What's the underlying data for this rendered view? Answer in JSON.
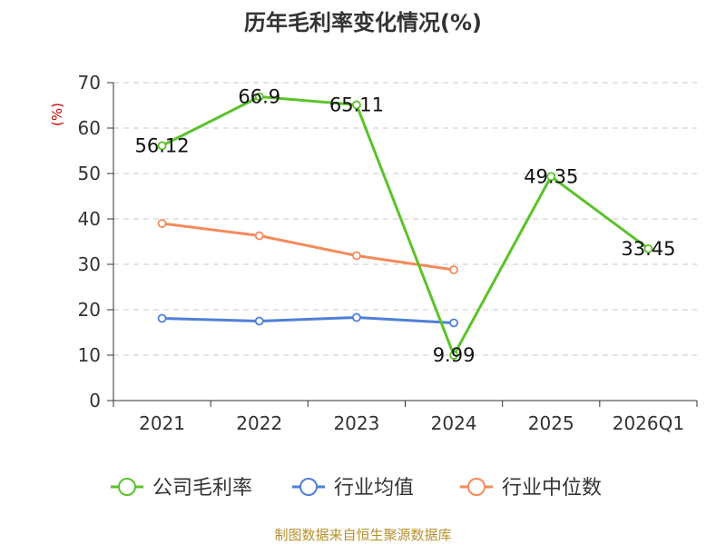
{
  "chart_data": {
    "type": "line",
    "title": "历年毛利率变化情况(%)",
    "ylabel": "(%)",
    "xlabel": "",
    "categories": [
      "2021",
      "2022",
      "2023",
      "2024",
      "2025",
      "2026Q1"
    ],
    "ylim": [
      0,
      70
    ],
    "yticks": [
      0,
      10,
      20,
      30,
      40,
      50,
      60,
      70
    ],
    "grid": true,
    "legend_position": "bottom",
    "series": [
      {
        "name": "公司毛利率",
        "color": "#5cc22b",
        "values": [
          56.12,
          66.9,
          65.11,
          9.99,
          49.35,
          33.45
        ],
        "show_labels": true
      },
      {
        "name": "行业均值",
        "color": "#4f7fd9",
        "values": [
          18.1,
          17.5,
          18.3,
          17.1,
          null,
          null
        ],
        "show_labels": false
      },
      {
        "name": "行业中位数",
        "color": "#f38b5a",
        "values": [
          39.0,
          36.3,
          31.9,
          28.8,
          null,
          null
        ],
        "show_labels": false
      }
    ],
    "labels": [
      "56.12",
      "66.9",
      "65.11",
      "9.99",
      "49.35",
      "33.45"
    ],
    "source": "制图数据来自恒生聚源数据库"
  }
}
